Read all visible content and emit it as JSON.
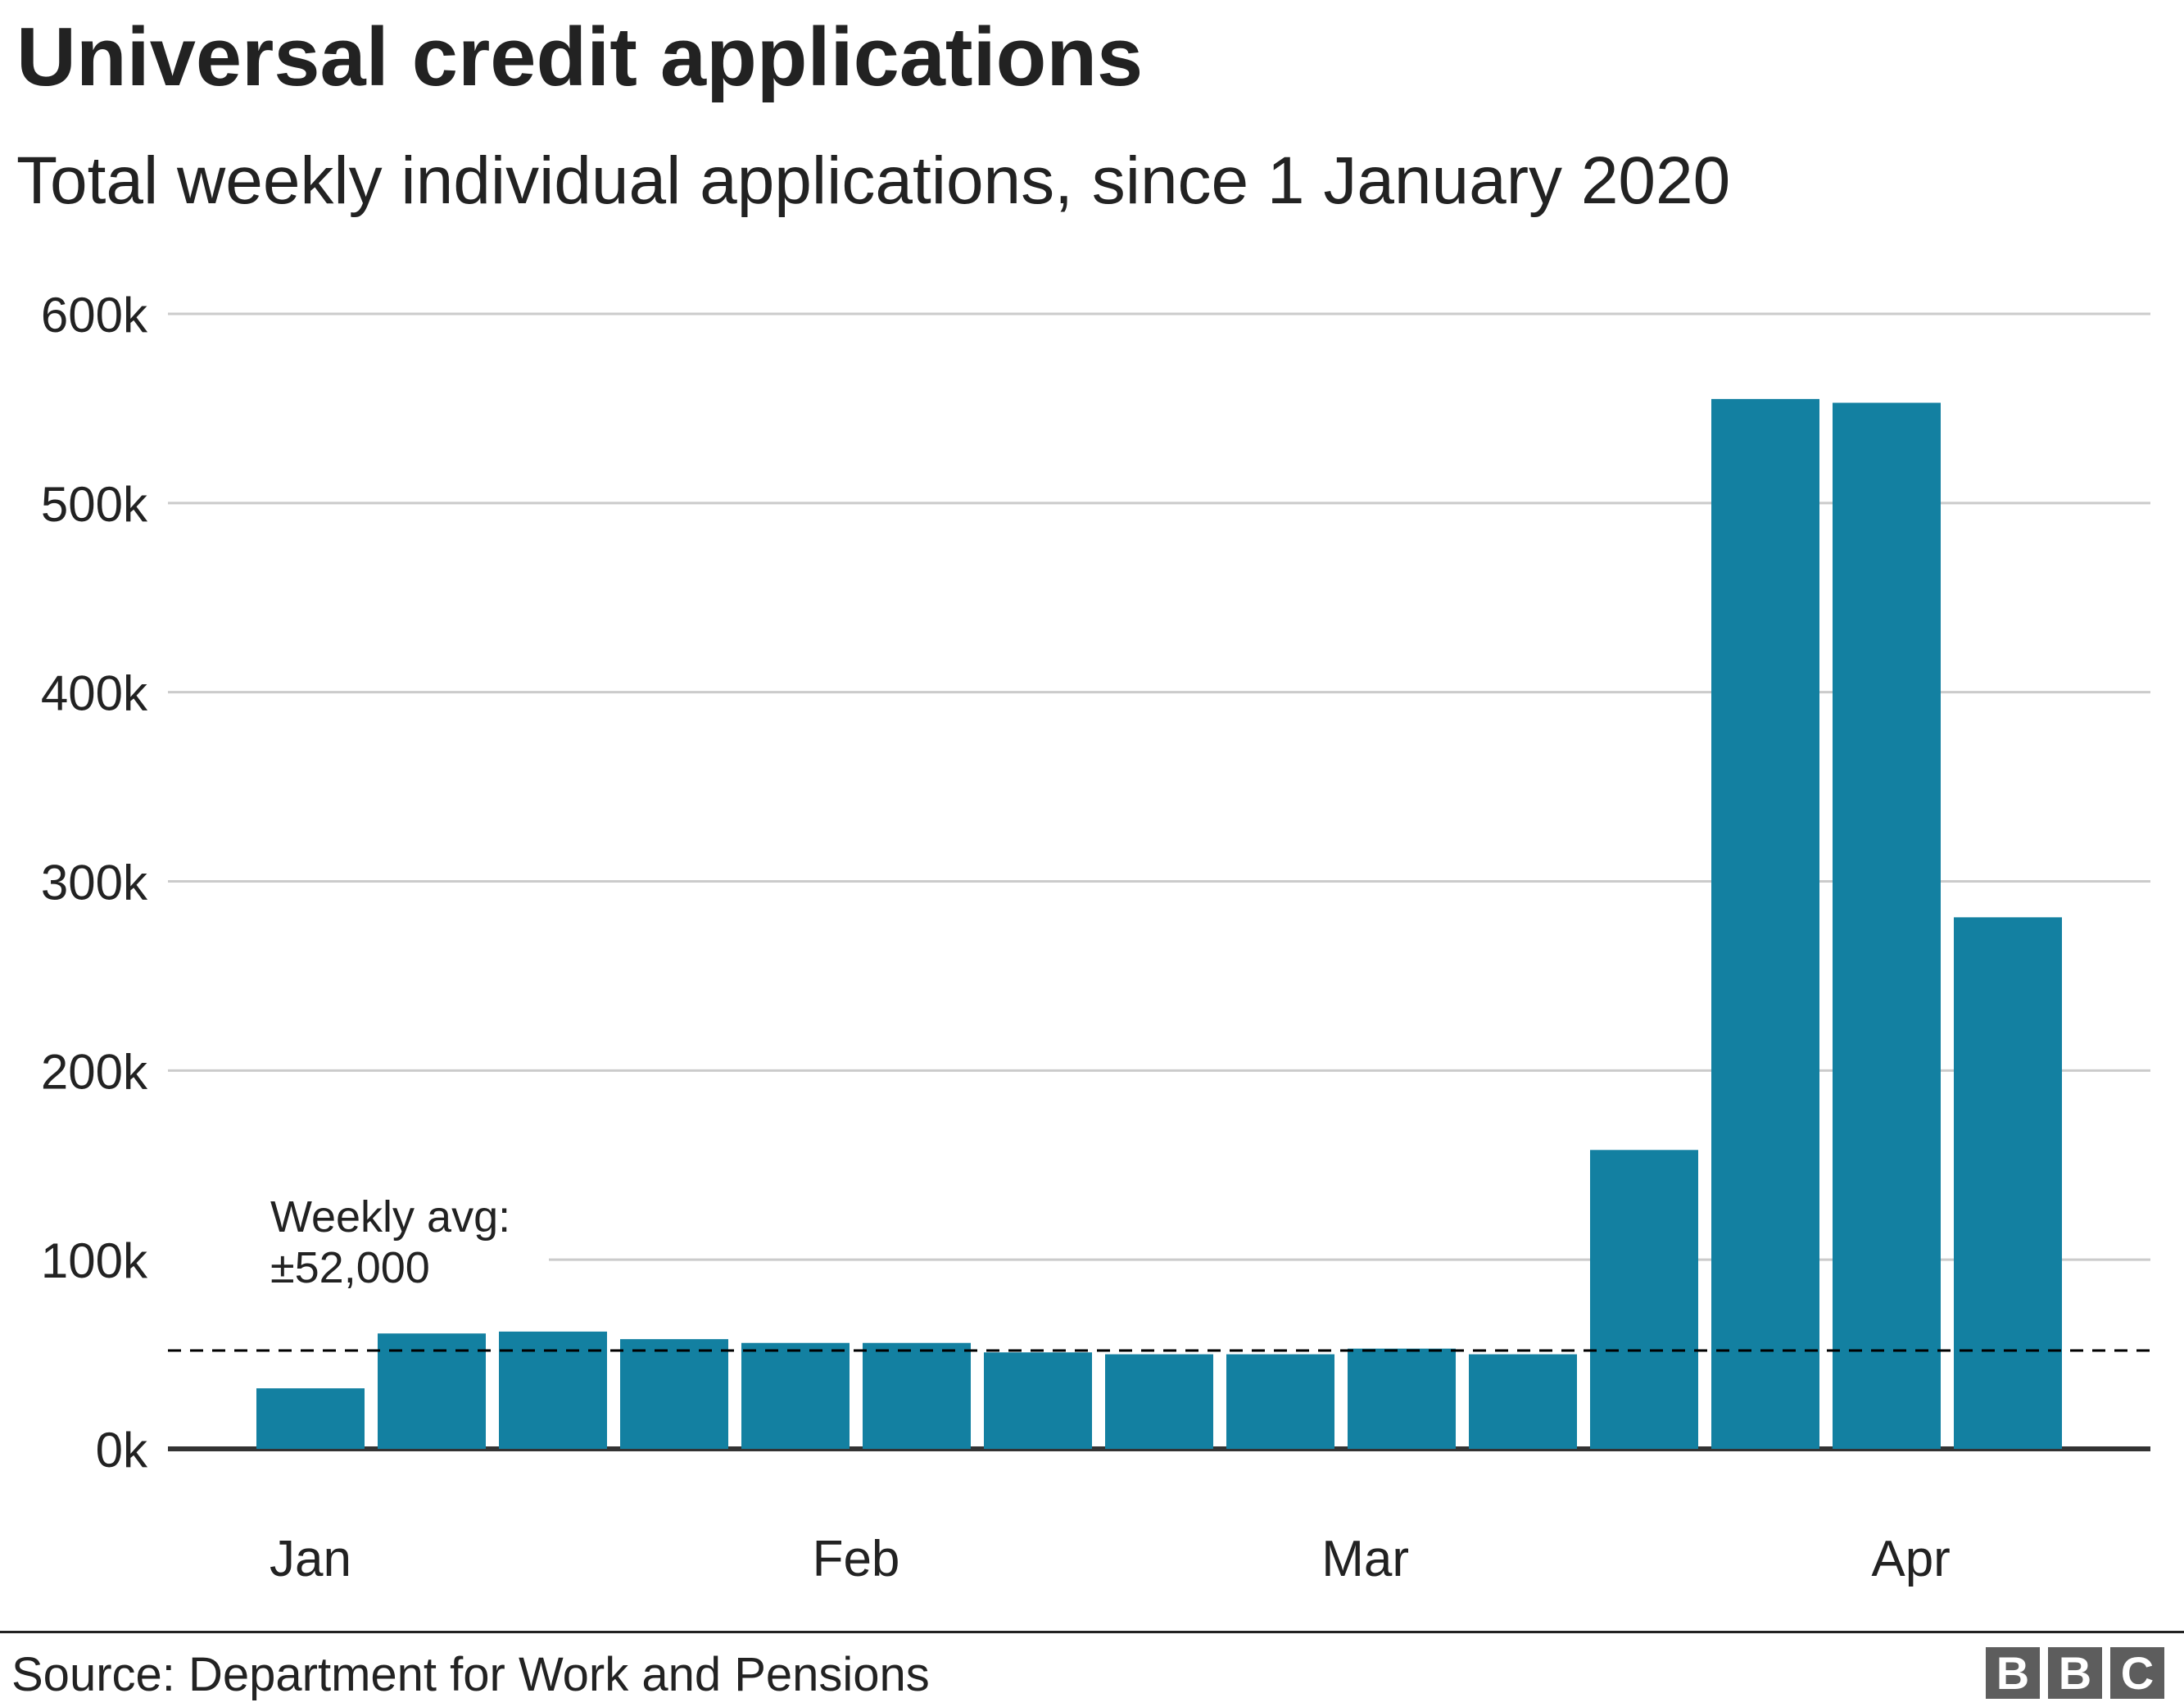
{
  "header": {
    "title": "Universal credit applications",
    "subtitle": "Total weekly individual applications, since 1 January 2020"
  },
  "footer": {
    "source": "Source: Department for Work and Pensions",
    "logo_letters": [
      "B",
      "B",
      "C"
    ]
  },
  "colors": {
    "bar": "#1380A1",
    "grid": "#cbcbcb",
    "baseline": "#333333",
    "text": "#222222",
    "reference_line": "#000000"
  },
  "chart_data": {
    "type": "bar",
    "title": "Universal credit applications",
    "subtitle": "Total weekly individual applications, since 1 January 2020",
    "xlabel": "",
    "ylabel": "",
    "ylim": [
      0,
      600000
    ],
    "yticks": [
      0,
      100000,
      200000,
      300000,
      400000,
      500000,
      600000
    ],
    "ytick_labels": [
      "0k",
      "100k",
      "200k",
      "300k",
      "400k",
      "500k",
      "600k"
    ],
    "xtick_labels": [
      {
        "label": "Jan",
        "bar_index": 0
      },
      {
        "label": "Feb",
        "bar_index": 4.5
      },
      {
        "label": "Mar",
        "bar_index": 8.7
      },
      {
        "label": "Apr",
        "bar_index": 13.2
      }
    ],
    "grid": true,
    "values": [
      32000,
      61000,
      62000,
      58000,
      56000,
      56000,
      51000,
      50000,
      50000,
      53000,
      50000,
      158000,
      555000,
      553000,
      281000
    ],
    "reference_line": {
      "value": 52000,
      "style": "dashed",
      "label_lines": [
        "Weekly avg:",
        "±52,000"
      ]
    }
  }
}
